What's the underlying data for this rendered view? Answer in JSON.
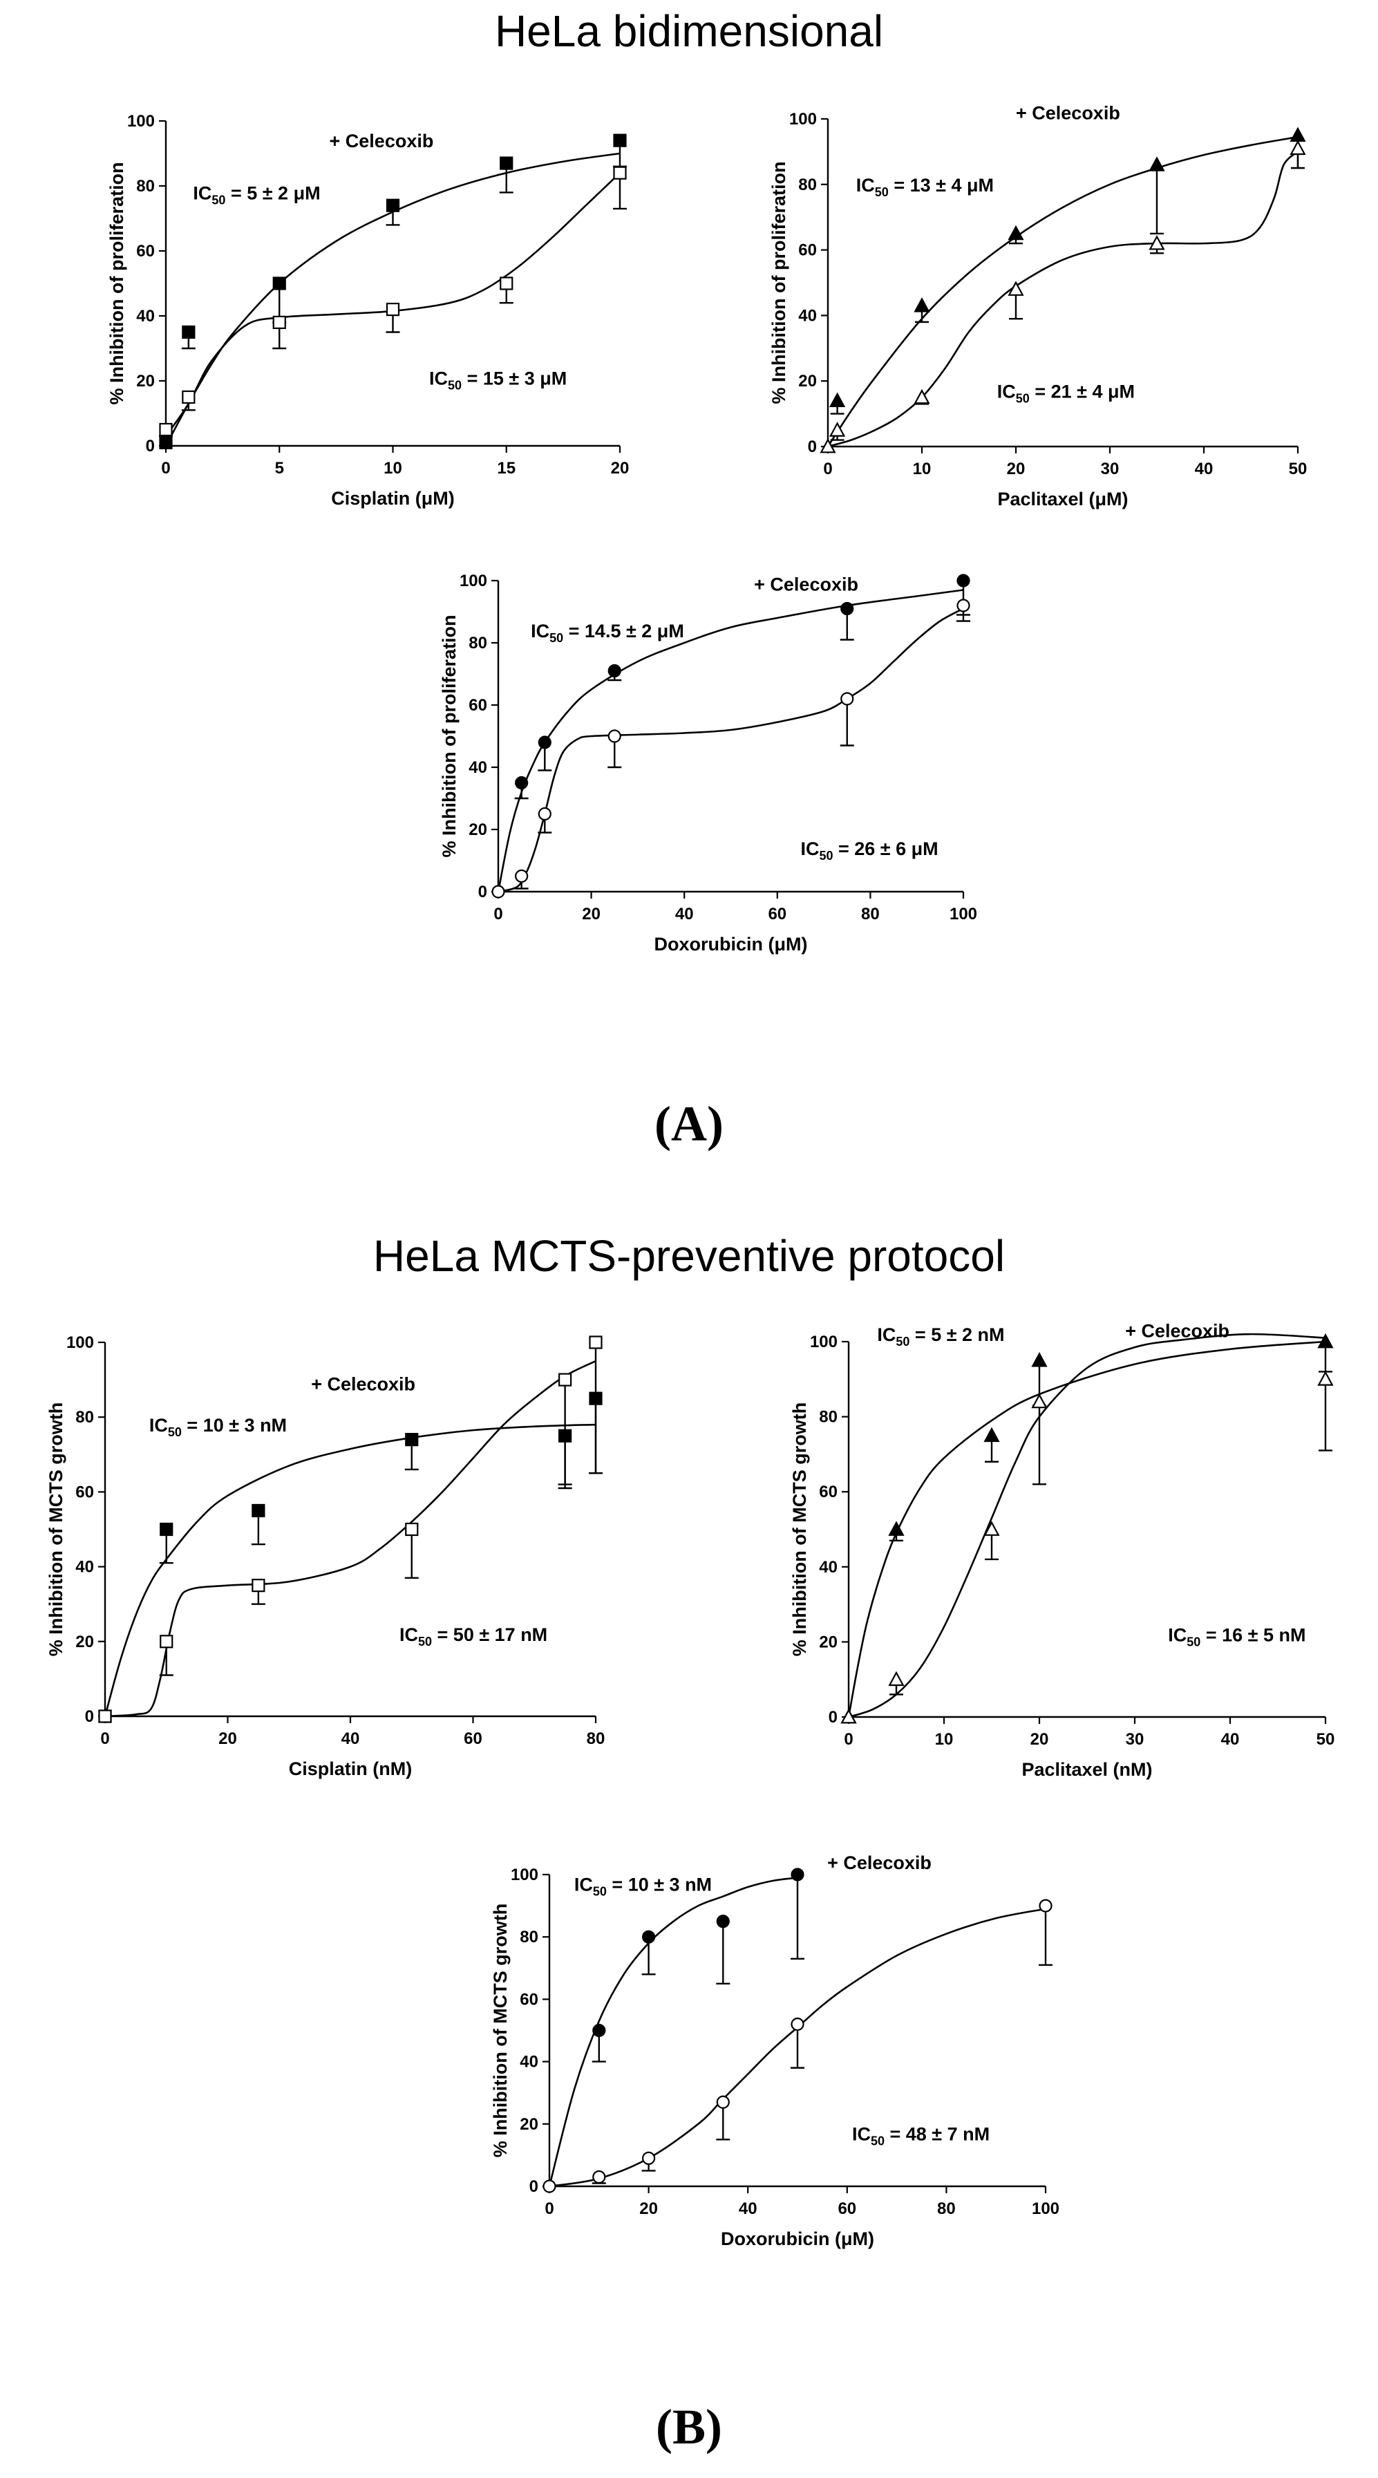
{
  "sections": [
    {
      "title": "HeLa bidimensional",
      "label": "(A)"
    },
    {
      "title": "HeLa MCTS-preventive protocol",
      "label": "(B)"
    }
  ],
  "chart_data": [
    {
      "type": "line",
      "section": "A",
      "xlabel": "Cisplatin (μM)",
      "ylabel": "% Inhibition of proliferation",
      "annotation": "+ Celecoxib",
      "xlim": [
        0,
        20
      ],
      "ylim": [
        0,
        100
      ],
      "xticks": [
        0,
        5,
        10,
        15,
        20
      ],
      "yticks": [
        0,
        20,
        40,
        60,
        80,
        100
      ],
      "ic50_labels": [
        {
          "series": "filled",
          "prefix": "IC",
          "sub": "50",
          "value": " = 5 ± 2 μM"
        },
        {
          "series": "open",
          "prefix": "IC",
          "sub": "50",
          "value": " = 15 ± 3 μM"
        }
      ],
      "series": [
        {
          "name": "filled",
          "marker": "square",
          "fill": "filled",
          "x": [
            0,
            1,
            5,
            10,
            15,
            20
          ],
          "y": [
            1,
            35,
            50,
            74,
            87,
            94
          ],
          "err": [
            1,
            5,
            12,
            6,
            9,
            8
          ],
          "curve_x": [
            0,
            1,
            2,
            3,
            5,
            7.5,
            10,
            12.5,
            15,
            17.5,
            20
          ],
          "curve_y": [
            0,
            13,
            25,
            35,
            50,
            63,
            72,
            79,
            84,
            87.5,
            90
          ]
        },
        {
          "name": "open",
          "marker": "square",
          "fill": "open",
          "x": [
            0,
            1,
            5,
            10,
            15,
            20
          ],
          "y": [
            5,
            15,
            38,
            42,
            50,
            84
          ],
          "err": [
            2,
            4,
            8,
            7,
            6,
            11
          ],
          "curve_x": [
            0,
            1,
            2,
            3.5,
            5,
            7.5,
            10,
            12.5,
            14,
            15.5,
            17,
            18.5,
            20
          ],
          "curve_y": [
            3,
            13,
            26,
            37,
            39.5,
            40.5,
            41.5,
            44,
            48,
            55,
            64,
            74,
            84
          ]
        }
      ]
    },
    {
      "type": "line",
      "section": "A",
      "xlabel": "Paclitaxel (μM)",
      "ylabel": "% Inhibition of proliferation",
      "annotation": "+ Celecoxib",
      "xlim": [
        0,
        50
      ],
      "ylim": [
        0,
        100
      ],
      "xticks": [
        0,
        10,
        20,
        30,
        40,
        50
      ],
      "yticks": [
        0,
        20,
        40,
        60,
        80,
        100
      ],
      "ic50_labels": [
        {
          "series": "filled",
          "prefix": "IC",
          "sub": "50",
          "value": " = 13 ± 4 μM"
        },
        {
          "series": "open",
          "prefix": "IC",
          "sub": "50",
          "value": " = 21 ± 4 μM"
        }
      ],
      "series": [
        {
          "name": "filled",
          "marker": "triangle",
          "fill": "filled",
          "x": [
            1,
            10,
            20,
            35,
            50
          ],
          "y": [
            14,
            43,
            65,
            86,
            95
          ],
          "err": [
            4,
            5,
            3,
            21,
            10
          ],
          "curve_x": [
            0,
            2.5,
            5,
            10,
            15,
            20,
            25,
            30,
            35,
            40,
            45,
            50
          ],
          "curve_y": [
            0,
            11,
            21,
            39,
            53,
            64,
            73,
            80,
            85,
            89,
            92,
            94.5
          ]
        },
        {
          "name": "open",
          "marker": "triangle",
          "fill": "open",
          "x": [
            0,
            1,
            10,
            20,
            35,
            50
          ],
          "y": [
            0,
            5,
            15,
            48,
            62,
            91
          ],
          "err": [
            1,
            3,
            2,
            9,
            3,
            6
          ],
          "curve_x": [
            0,
            2.5,
            5,
            7.5,
            10,
            12.5,
            15,
            17.5,
            20,
            25,
            30,
            35,
            40,
            44,
            46,
            47.5,
            48.5,
            50
          ],
          "curve_y": [
            0,
            2,
            5,
            9,
            15,
            24,
            35,
            43,
            49,
            57,
            61,
            62,
            62,
            63,
            67,
            76,
            86,
            90
          ]
        }
      ]
    },
    {
      "type": "line",
      "section": "A",
      "xlabel": "Doxorubicin (μM)",
      "ylabel": "% Inhibition of proliferation",
      "annotation": "+ Celecoxib",
      "xlim": [
        0,
        100
      ],
      "ylim": [
        0,
        100
      ],
      "xticks": [
        0,
        20,
        40,
        60,
        80,
        100
      ],
      "yticks": [
        0,
        20,
        40,
        60,
        80,
        100
      ],
      "ic50_labels": [
        {
          "series": "filled",
          "prefix": "IC",
          "sub": "50",
          "value": " = 14.5 ± 2 μM"
        },
        {
          "series": "open",
          "prefix": "IC",
          "sub": "50",
          "value": " = 26 ± 6 μM"
        }
      ],
      "series": [
        {
          "name": "filled",
          "marker": "circle",
          "fill": "filled",
          "x": [
            5,
            10,
            25,
            75,
            100
          ],
          "y": [
            35,
            48,
            71,
            91,
            100
          ],
          "err": [
            5,
            9,
            3,
            10,
            11
          ],
          "curve_x": [
            0,
            2.5,
            5,
            7.5,
            10,
            15,
            20,
            30,
            40,
            50,
            60,
            75,
            90,
            100
          ],
          "curve_y": [
            0,
            19,
            32,
            41,
            48,
            58,
            65,
            74,
            80,
            85,
            88,
            92,
            95,
            97
          ]
        },
        {
          "name": "open",
          "marker": "circle",
          "fill": "open",
          "x": [
            0,
            5,
            10,
            25,
            75,
            100
          ],
          "y": [
            0,
            5,
            25,
            50,
            62,
            92
          ],
          "err": [
            1,
            4,
            6,
            10,
            15,
            5
          ],
          "curve_x": [
            0,
            4,
            6,
            8,
            10,
            12,
            14,
            17,
            20,
            30,
            40,
            50,
            60,
            70,
            75,
            80,
            85,
            90,
            95,
            100
          ],
          "curve_y": [
            0,
            1.5,
            6,
            14,
            25,
            37,
            45,
            49,
            50,
            50.5,
            51,
            52,
            54.5,
            58,
            62,
            67,
            74,
            81,
            87,
            91
          ]
        }
      ]
    },
    {
      "type": "line",
      "section": "B",
      "xlabel": "Cisplatin (nM)",
      "ylabel": "% Inhibition of MCTS growth",
      "annotation": "+ Celecoxib",
      "xlim": [
        0,
        80
      ],
      "ylim": [
        0,
        100
      ],
      "xticks": [
        0,
        20,
        40,
        60,
        80
      ],
      "yticks": [
        0,
        20,
        40,
        60,
        80,
        100
      ],
      "ic50_labels": [
        {
          "series": "filled",
          "prefix": "IC",
          "sub": "50",
          "value": " = 10 ± 3 nM"
        },
        {
          "series": "open",
          "prefix": "IC",
          "sub": "50",
          "value": " = 50 ± 17 nM"
        }
      ],
      "series": [
        {
          "name": "filled",
          "marker": "square",
          "fill": "filled",
          "x": [
            0,
            10,
            25,
            50,
            75,
            80
          ],
          "y": [
            0,
            50,
            55,
            74,
            75,
            85
          ],
          "err": [
            1,
            9,
            9,
            8,
            14,
            20
          ],
          "curve_x": [
            0,
            2.5,
            5,
            7.5,
            10,
            15,
            20,
            30,
            40,
            50,
            60,
            70,
            80
          ],
          "curve_y": [
            0,
            15,
            27,
            36,
            42,
            52,
            59,
            67,
            71.5,
            74.5,
            76.5,
            77.5,
            78
          ]
        },
        {
          "name": "open",
          "marker": "square",
          "fill": "open",
          "x": [
            0,
            10,
            25,
            50,
            75,
            80
          ],
          "y": [
            0,
            20,
            35,
            50,
            90,
            100
          ],
          "err": [
            1,
            9,
            5,
            13,
            28,
            35
          ],
          "curve_x": [
            0,
            5,
            7.5,
            9,
            10.5,
            12,
            14,
            20,
            30,
            40,
            45,
            50,
            55,
            60,
            65,
            70,
            75,
            80
          ],
          "curve_y": [
            0,
            0.5,
            2,
            10,
            22,
            31,
            34,
            35,
            36,
            40,
            45,
            52,
            60,
            69,
            78,
            85,
            91,
            95
          ]
        }
      ]
    },
    {
      "type": "line",
      "section": "B",
      "xlabel": "Paclitaxel (nM)",
      "ylabel": "% Inhibition of MCTS growth",
      "annotation": "+ Celecoxib",
      "xlim": [
        0,
        50
      ],
      "ylim": [
        0,
        100
      ],
      "xticks": [
        0,
        10,
        20,
        30,
        40,
        50
      ],
      "yticks": [
        0,
        20,
        40,
        60,
        80,
        100
      ],
      "ic50_labels": [
        {
          "series": "filled",
          "prefix": "IC",
          "sub": "50",
          "value": " = 5 ± 2 nM"
        },
        {
          "series": "open",
          "prefix": "IC",
          "sub": "50",
          "value": " = 16 ± 5 nM"
        }
      ],
      "series": [
        {
          "name": "filled",
          "marker": "triangle",
          "fill": "filled",
          "x": [
            0,
            5,
            15,
            20,
            50
          ],
          "y": [
            0,
            50,
            75,
            95,
            100
          ],
          "err": [
            1,
            3,
            7,
            12,
            8
          ],
          "curve_x": [
            0,
            1,
            2,
            3.5,
            5,
            7.5,
            10,
            15,
            20,
            30,
            40,
            50
          ],
          "curve_y": [
            0,
            14,
            26,
            39,
            49,
            61,
            69,
            79,
            86,
            94,
            98,
            100
          ]
        },
        {
          "name": "open",
          "marker": "triangle",
          "fill": "open",
          "x": [
            0,
            5,
            15,
            20,
            50
          ],
          "y": [
            0,
            10,
            50,
            84,
            90
          ],
          "err": [
            1,
            4,
            8,
            22,
            19
          ],
          "curve_x": [
            0,
            2.5,
            5,
            7.5,
            10,
            12.5,
            15,
            17.5,
            20,
            25,
            30,
            35,
            42,
            50
          ],
          "curve_y": [
            0,
            2,
            6,
            13,
            24,
            38,
            53,
            68,
            80,
            93,
            98.5,
            100.5,
            102,
            101
          ]
        }
      ]
    },
    {
      "type": "line",
      "section": "B",
      "xlabel": "Doxorubicin (μM)",
      "ylabel": "% Inhibition of MCTS growth",
      "annotation": "+ Celecoxib",
      "xlim": [
        0,
        100
      ],
      "ylim": [
        0,
        100
      ],
      "xticks": [
        0,
        20,
        40,
        60,
        80,
        100
      ],
      "yticks": [
        0,
        20,
        40,
        60,
        80,
        100
      ],
      "ic50_labels": [
        {
          "series": "filled",
          "prefix": "IC",
          "sub": "50",
          "value": " = 10 ± 3 nM"
        },
        {
          "series": "open",
          "prefix": "IC",
          "sub": "50",
          "value": " = 48 ± 7 nM"
        }
      ],
      "series": [
        {
          "name": "filled",
          "marker": "circle",
          "fill": "filled",
          "x": [
            10,
            20,
            35,
            50
          ],
          "y": [
            50,
            80,
            85,
            100
          ],
          "err": [
            10,
            12,
            20,
            27
          ],
          "curve_x": [
            0,
            5,
            10,
            15,
            20,
            25,
            30,
            35,
            40,
            45,
            50
          ],
          "curve_y": [
            0,
            31,
            53,
            68,
            78,
            85,
            90,
            93,
            96,
            98,
            99
          ]
        },
        {
          "name": "open",
          "marker": "circle",
          "fill": "open",
          "x": [
            0,
            10,
            20,
            35,
            50,
            100
          ],
          "y": [
            0,
            3,
            9,
            27,
            52,
            90
          ],
          "err": [
            1,
            2,
            4,
            12,
            14,
            19
          ],
          "curve_x": [
            0,
            10,
            20,
            30,
            35,
            40,
            45,
            50,
            55,
            60,
            70,
            80,
            90,
            100
          ],
          "curve_y": [
            0,
            2.5,
            9,
            20,
            28,
            36,
            44,
            51,
            58,
            64,
            74,
            81,
            86,
            89
          ]
        }
      ]
    }
  ]
}
